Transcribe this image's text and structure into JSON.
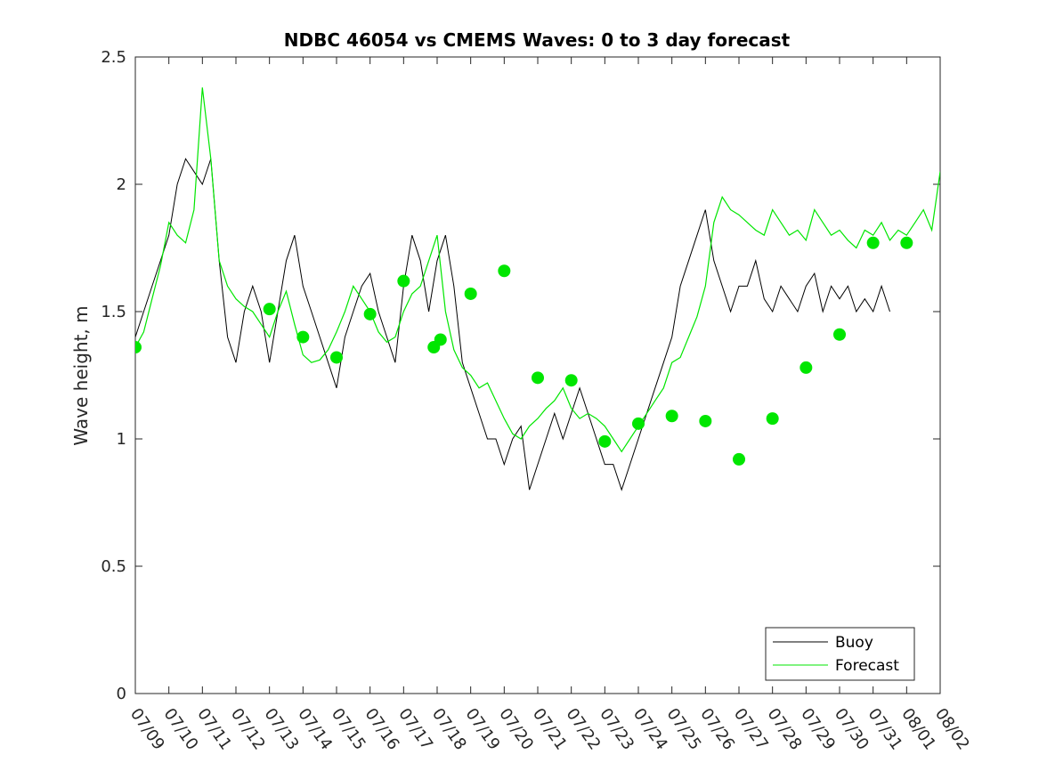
{
  "chart_data": {
    "type": "line",
    "title": "NDBC 46054 vs CMEMS Waves: 0 to 3 day forecast",
    "xlabel": "",
    "ylabel": "Wave height, m",
    "ylim": [
      0,
      2.5
    ],
    "yticks": [
      "0",
      "0.5",
      "1",
      "1.5",
      "2",
      "2.5"
    ],
    "xlim": [
      0,
      24
    ],
    "xtick_labels": [
      "07/09",
      "07/10",
      "07/11",
      "07/12",
      "07/13",
      "07/14",
      "07/15",
      "07/16",
      "07/17",
      "07/18",
      "07/19",
      "07/20",
      "07/21",
      "07/22",
      "07/23",
      "07/24",
      "07/25",
      "07/26",
      "07/27",
      "07/28",
      "07/29",
      "07/30",
      "07/31",
      "08/01",
      "08/02"
    ],
    "grid": false,
    "legend_position": "bottom-right",
    "colors": {
      "buoy": "#000000",
      "forecast": "#00e600",
      "axis": "#262626"
    },
    "series": [
      {
        "name": "Buoy",
        "x_days": [
          0,
          0.25,
          0.5,
          0.75,
          1,
          1.25,
          1.5,
          1.75,
          2,
          2.25,
          2.5,
          2.75,
          3,
          3.25,
          3.5,
          3.75,
          4,
          4.25,
          4.5,
          4.75,
          5,
          5.25,
          5.5,
          5.75,
          6,
          6.25,
          6.5,
          6.75,
          7,
          7.25,
          7.5,
          7.75,
          8,
          8.25,
          8.5,
          8.75,
          9,
          9.25,
          9.5,
          9.75,
          10,
          10.25,
          10.5,
          10.75,
          11,
          11.25,
          11.5,
          11.75,
          12,
          12.25,
          12.5,
          12.75,
          13,
          13.25,
          13.5,
          13.75,
          14,
          14.25,
          14.5,
          14.75,
          15,
          15.25,
          15.5,
          15.75,
          16,
          16.25,
          16.5,
          16.75,
          17,
          17.25,
          17.5,
          17.75,
          18,
          18.25,
          18.5,
          18.75,
          19,
          19.25,
          19.5,
          19.75,
          20,
          20.25,
          20.5,
          20.75,
          21,
          21.25,
          21.5,
          21.75,
          22,
          22.25,
          22.5
        ],
        "values": [
          1.4,
          1.5,
          1.6,
          1.7,
          1.8,
          2.0,
          2.1,
          2.05,
          2.0,
          2.1,
          1.7,
          1.4,
          1.3,
          1.5,
          1.6,
          1.5,
          1.3,
          1.5,
          1.7,
          1.8,
          1.6,
          1.5,
          1.4,
          1.3,
          1.2,
          1.4,
          1.5,
          1.6,
          1.65,
          1.5,
          1.4,
          1.3,
          1.6,
          1.8,
          1.7,
          1.5,
          1.7,
          1.8,
          1.6,
          1.3,
          1.2,
          1.1,
          1.0,
          1.0,
          0.9,
          1.0,
          1.05,
          0.8,
          0.9,
          1.0,
          1.1,
          1.0,
          1.1,
          1.2,
          1.1,
          1.0,
          0.9,
          0.9,
          0.8,
          0.9,
          1.0,
          1.1,
          1.2,
          1.3,
          1.4,
          1.6,
          1.7,
          1.8,
          1.9,
          1.7,
          1.6,
          1.5,
          1.6,
          1.6,
          1.7,
          1.55,
          1.5,
          1.6,
          1.55,
          1.5,
          1.6,
          1.65,
          1.5,
          1.6,
          1.55,
          1.6,
          1.5,
          1.55,
          1.5,
          1.6,
          1.5
        ]
      },
      {
        "name": "Forecast",
        "x_days": [
          0,
          0.25,
          0.5,
          0.75,
          1,
          1.25,
          1.5,
          1.75,
          2,
          2.25,
          2.5,
          2.75,
          3,
          3.25,
          3.5,
          3.75,
          4,
          4.25,
          4.5,
          4.75,
          5,
          5.25,
          5.5,
          5.75,
          6,
          6.25,
          6.5,
          6.75,
          7,
          7.25,
          7.5,
          7.75,
          8,
          8.25,
          8.5,
          8.75,
          9,
          9.25,
          9.5,
          9.75,
          10,
          10.25,
          10.5,
          10.75,
          11,
          11.25,
          11.5,
          11.75,
          12,
          12.25,
          12.5,
          12.75,
          13,
          13.25,
          13.5,
          13.75,
          14,
          14.25,
          14.5,
          14.75,
          15,
          15.25,
          15.5,
          15.75,
          16,
          16.25,
          16.5,
          16.75,
          17,
          17.25,
          17.5,
          17.75,
          18,
          18.25,
          18.5,
          18.75,
          19,
          19.25,
          19.5,
          19.75,
          20,
          20.25,
          20.5,
          20.75,
          21,
          21.25,
          21.5,
          21.75,
          22,
          22.25,
          22.5,
          22.75,
          23,
          23.25,
          23.5,
          23.75,
          24
        ],
        "values": [
          1.36,
          1.42,
          1.55,
          1.68,
          1.85,
          1.8,
          1.77,
          1.9,
          2.38,
          2.1,
          1.7,
          1.6,
          1.55,
          1.52,
          1.5,
          1.45,
          1.4,
          1.5,
          1.58,
          1.45,
          1.33,
          1.3,
          1.31,
          1.35,
          1.42,
          1.5,
          1.6,
          1.55,
          1.5,
          1.42,
          1.38,
          1.4,
          1.5,
          1.57,
          1.6,
          1.7,
          1.8,
          1.5,
          1.35,
          1.28,
          1.25,
          1.2,
          1.22,
          1.15,
          1.08,
          1.02,
          1.0,
          1.05,
          1.08,
          1.12,
          1.15,
          1.2,
          1.12,
          1.08,
          1.1,
          1.08,
          1.05,
          1.0,
          0.95,
          1.0,
          1.05,
          1.1,
          1.15,
          1.2,
          1.3,
          1.32,
          1.4,
          1.48,
          1.6,
          1.85,
          1.95,
          1.9,
          1.88,
          1.85,
          1.82,
          1.8,
          1.9,
          1.85,
          1.8,
          1.82,
          1.78,
          1.9,
          1.85,
          1.8,
          1.82,
          1.78,
          1.75,
          1.82,
          1.8,
          1.85,
          1.78,
          1.82,
          1.8,
          1.85,
          1.9,
          1.82,
          2.05
        ]
      },
      {
        "name": "",
        "type": "scatter",
        "x_days": [
          0,
          4,
          5,
          6,
          7,
          8,
          8.9,
          9.1,
          10,
          11,
          12,
          13,
          14,
          15,
          16,
          17,
          18,
          19,
          20,
          21,
          22,
          23
        ],
        "values": [
          1.36,
          1.51,
          1.4,
          1.32,
          1.49,
          1.62,
          1.36,
          1.39,
          1.57,
          1.66,
          1.24,
          1.23,
          0.99,
          1.06,
          1.09,
          1.07,
          0.92,
          1.08,
          1.28,
          1.41,
          1.77,
          1.77
        ]
      }
    ],
    "legend": [
      "Buoy",
      "Forecast"
    ]
  }
}
